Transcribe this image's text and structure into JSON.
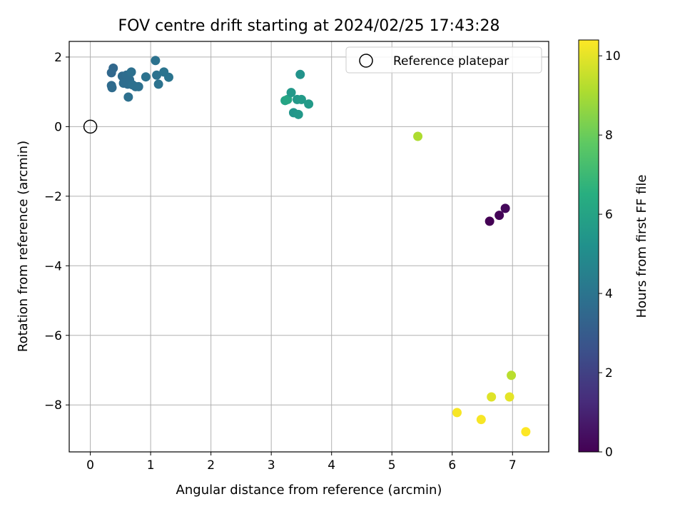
{
  "chart_data": {
    "type": "scatter",
    "title": "FOV centre drift starting at 2024/02/25 17:43:28",
    "xlabel": "Angular distance from reference (arcmin)",
    "ylabel": "Rotation from reference (arcmin)",
    "xlim": [
      -0.35,
      7.6
    ],
    "ylim": [
      -9.35,
      2.45
    ],
    "xticks": [
      0,
      1,
      2,
      3,
      4,
      5,
      6,
      7
    ],
    "yticks": [
      2,
      0,
      -2,
      -4,
      -6,
      -8
    ],
    "xtick_labels": [
      "0",
      "1",
      "2",
      "3",
      "4",
      "5",
      "6",
      "7"
    ],
    "ytick_labels": [
      "2",
      "0",
      "−2",
      "−4",
      "−6",
      "−8"
    ],
    "grid": true,
    "legend": {
      "position": "top-right",
      "entries": [
        {
          "label": "Reference platepar",
          "marker": "open-circle"
        }
      ]
    },
    "reference_point": {
      "x": 0,
      "y": 0
    },
    "colorbar": {
      "label": "Hours from first FF file",
      "min": 0,
      "max": 10.4,
      "ticks": [
        0,
        2,
        4,
        6,
        8,
        10
      ],
      "tick_labels": [
        "0",
        "2",
        "4",
        "6",
        "8",
        "10"
      ],
      "colormap": "viridis"
    },
    "points": [
      {
        "x": 6.62,
        "y": -2.72,
        "h": 0.0
      },
      {
        "x": 6.78,
        "y": -2.55,
        "h": 0.1
      },
      {
        "x": 6.88,
        "y": -2.35,
        "h": 0.2
      },
      {
        "x": 0.35,
        "y": 1.55,
        "h": 3.5
      },
      {
        "x": 0.38,
        "y": 1.68,
        "h": 3.5
      },
      {
        "x": 0.35,
        "y": 1.18,
        "h": 3.6
      },
      {
        "x": 0.36,
        "y": 1.12,
        "h": 3.6
      },
      {
        "x": 0.53,
        "y": 1.45,
        "h": 3.6
      },
      {
        "x": 0.55,
        "y": 1.25,
        "h": 3.7
      },
      {
        "x": 0.6,
        "y": 1.48,
        "h": 3.7
      },
      {
        "x": 0.62,
        "y": 1.22,
        "h": 3.7
      },
      {
        "x": 0.65,
        "y": 1.35,
        "h": 3.7
      },
      {
        "x": 0.63,
        "y": 0.85,
        "h": 3.8
      },
      {
        "x": 0.68,
        "y": 1.57,
        "h": 3.8
      },
      {
        "x": 0.7,
        "y": 1.2,
        "h": 3.8
      },
      {
        "x": 0.75,
        "y": 1.15,
        "h": 3.8
      },
      {
        "x": 0.8,
        "y": 1.15,
        "h": 3.8
      },
      {
        "x": 0.92,
        "y": 1.43,
        "h": 3.9
      },
      {
        "x": 1.08,
        "y": 1.9,
        "h": 3.9
      },
      {
        "x": 1.1,
        "y": 1.48,
        "h": 3.9
      },
      {
        "x": 1.13,
        "y": 1.22,
        "h": 3.9
      },
      {
        "x": 1.22,
        "y": 1.57,
        "h": 4.0
      },
      {
        "x": 1.3,
        "y": 1.42,
        "h": 4.0
      },
      {
        "x": 3.23,
        "y": 0.75,
        "h": 6.0
      },
      {
        "x": 3.27,
        "y": 0.78,
        "h": 6.1
      },
      {
        "x": 3.33,
        "y": 0.98,
        "h": 5.5
      },
      {
        "x": 3.37,
        "y": 0.4,
        "h": 5.4
      },
      {
        "x": 3.43,
        "y": 0.78,
        "h": 5.5
      },
      {
        "x": 3.45,
        "y": 0.35,
        "h": 5.5
      },
      {
        "x": 3.48,
        "y": 1.5,
        "h": 5.3
      },
      {
        "x": 3.5,
        "y": 0.78,
        "h": 5.6
      },
      {
        "x": 3.62,
        "y": 0.65,
        "h": 5.6
      },
      {
        "x": 5.43,
        "y": -0.28,
        "h": 9.1
      },
      {
        "x": 6.08,
        "y": -8.22,
        "h": 10.3
      },
      {
        "x": 6.48,
        "y": -8.42,
        "h": 10.3
      },
      {
        "x": 6.65,
        "y": -7.77,
        "h": 9.9
      },
      {
        "x": 6.95,
        "y": -7.77,
        "h": 10.0
      },
      {
        "x": 6.98,
        "y": -7.15,
        "h": 9.3
      },
      {
        "x": 7.22,
        "y": -8.77,
        "h": 10.4
      }
    ]
  }
}
